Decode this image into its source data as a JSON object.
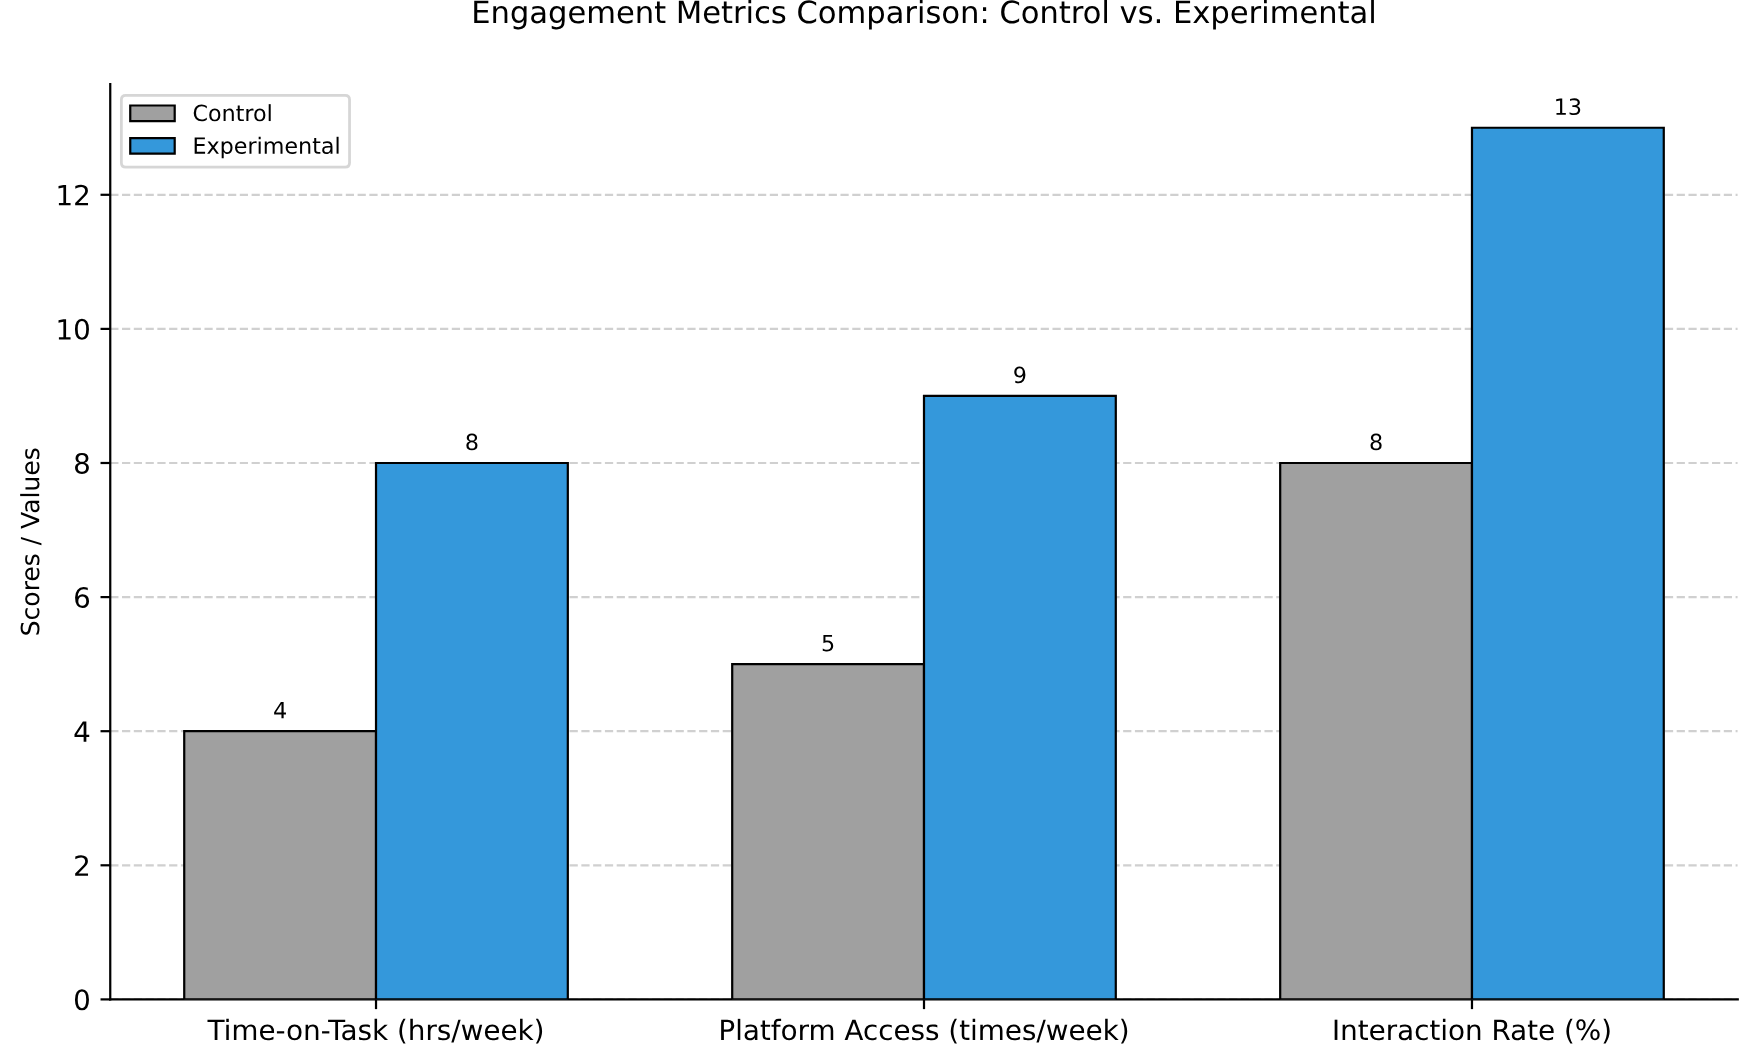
{
  "chart_data": {
    "type": "bar",
    "title": "Engagement Metrics Comparison: Control vs. Experimental",
    "ylabel": "Scores / Values",
    "categories": [
      "Time-on-Task (hrs/week)",
      "Platform Access (times/week)",
      "Interaction Rate (%)"
    ],
    "series": [
      {
        "name": "Control",
        "color": "#a0a0a0",
        "values": [
          4,
          5,
          8
        ]
      },
      {
        "name": "Experimental",
        "color": "#3498db",
        "values": [
          8,
          9,
          13
        ]
      }
    ],
    "ylim": [
      0,
      13.65
    ],
    "yticks": [
      0,
      2,
      4,
      6,
      8,
      10,
      12
    ],
    "grid": "y",
    "legend": "top left",
    "data_labels": true
  }
}
